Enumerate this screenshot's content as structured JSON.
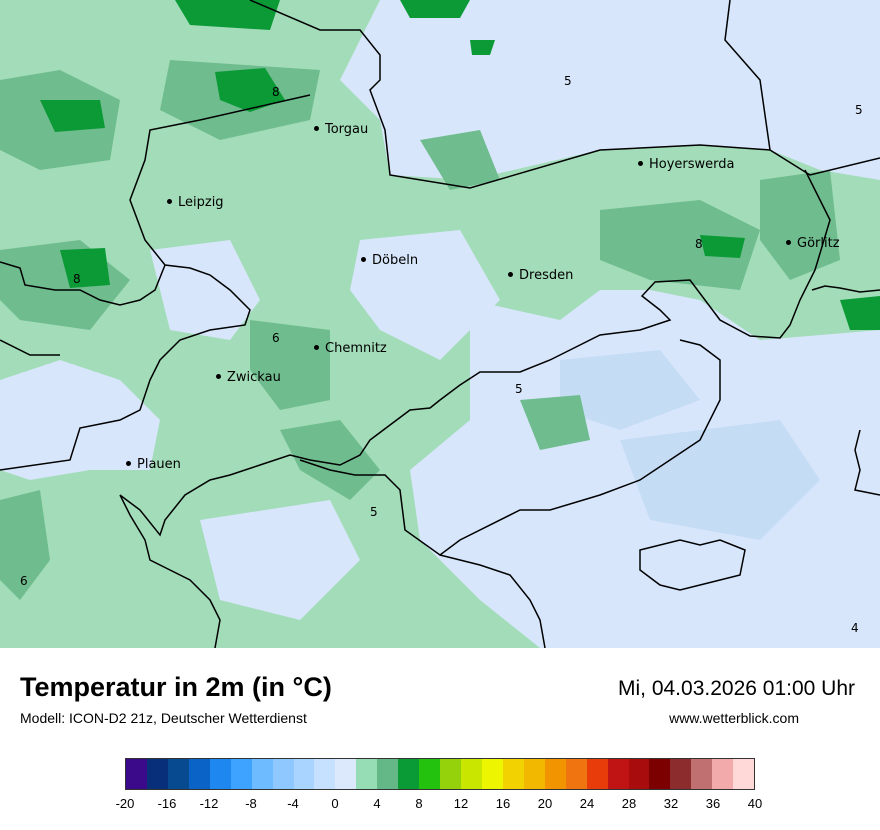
{
  "map": {
    "cities": [
      {
        "name": "Torgau"
      },
      {
        "name": "Hoyerswerda"
      },
      {
        "name": "Leipzig"
      },
      {
        "name": "Görlitz"
      },
      {
        "name": "Döbeln"
      },
      {
        "name": "Dresden"
      },
      {
        "name": "Chemnitz"
      },
      {
        "name": "Zwickau"
      },
      {
        "name": "Plauen"
      }
    ],
    "isolines": [
      "8",
      "5",
      "5",
      "8",
      "8",
      "6",
      "5",
      "5",
      "6",
      "4"
    ]
  },
  "header": {
    "title": "Temperatur in 2m (in °C)",
    "subtitle": "Modell: ICON-D2 21z, Deutscher Wetterdienst",
    "datetime": "Mi, 04.03.2026 01:00 Uhr",
    "website": "www.wetterblick.com"
  },
  "legend": {
    "colors": [
      "#3a0a8a",
      "#08307a",
      "#084a90",
      "#0a64c8",
      "#1e88f0",
      "#3ea2ff",
      "#6ebcff",
      "#8ec8ff",
      "#a8d4ff",
      "#c6e0ff",
      "#dce8fb",
      "#96dcb4",
      "#64b888",
      "#0a9a36",
      "#22c20e",
      "#96d20c",
      "#c8e600",
      "#eef500",
      "#f2d200",
      "#f2b800",
      "#f29400",
      "#f07410",
      "#e83c0a",
      "#c01414",
      "#a80c0c",
      "#7c0000",
      "#8c2c2c",
      "#c07070",
      "#f2aaaa",
      "#ffd8d8"
    ],
    "ticks": [
      "-20",
      "-16",
      "-12",
      "-8",
      "-4",
      "0",
      "4",
      "8",
      "12",
      "16",
      "20",
      "24",
      "28",
      "32",
      "36",
      "40"
    ]
  }
}
